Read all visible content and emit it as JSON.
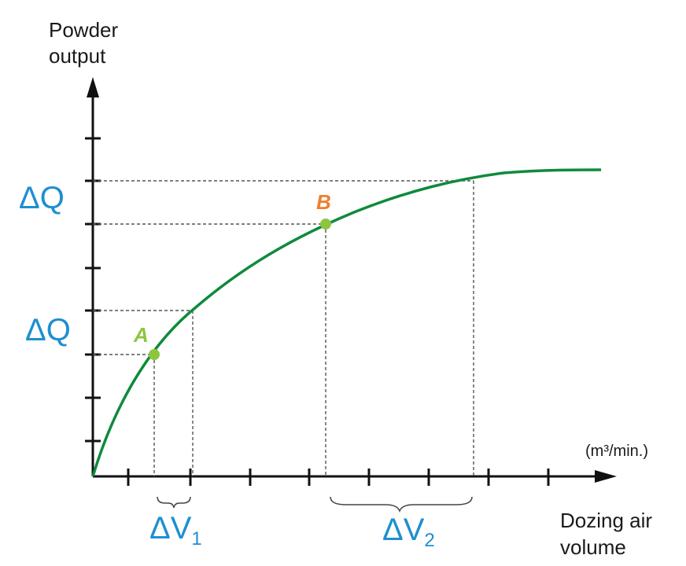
{
  "chart_data": {
    "type": "line",
    "title": "",
    "ylabel_line1": "Powder",
    "ylabel_line2": "output",
    "xlabel_line1": "Dozing air",
    "xlabel_line2": "volume",
    "x_unit": "(m³/min.)",
    "y_ticks": 8,
    "x_ticks": 8,
    "series": [
      {
        "color": "#0f8a3c",
        "shape": "saturating curve"
      }
    ],
    "points": [
      {
        "label": "A",
        "color": "#8cc63f"
      },
      {
        "label": "B",
        "color": "#f07f2a"
      }
    ],
    "annotations": {
      "delta_q_upper": "ΔQ",
      "delta_q_lower": "ΔQ",
      "delta_v1": "ΔV",
      "delta_v1_sub": "1",
      "delta_v2": "ΔV",
      "delta_v2_sub": "2"
    },
    "colors": {
      "annotation": "#1e8fd0",
      "axis": "#111111",
      "guide": "#555555"
    }
  }
}
